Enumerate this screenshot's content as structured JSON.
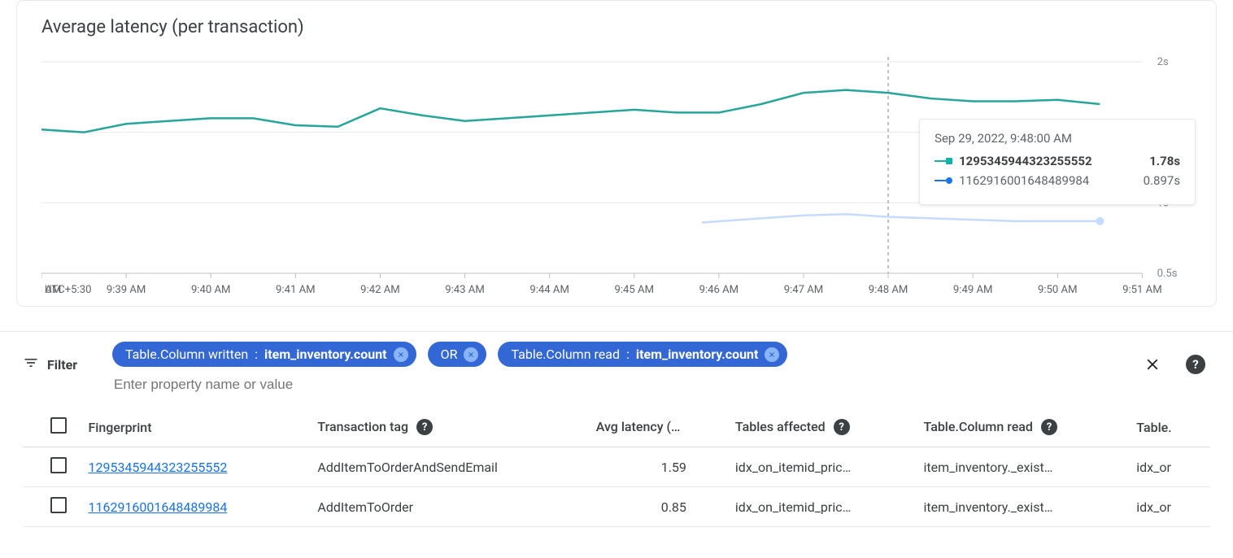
{
  "chart": {
    "title": "Average latency (per transaction)",
    "timezone_label": "UTC+5:30",
    "y_axis": {
      "min": 0.5,
      "max": 2.0,
      "ticks": [
        0.5,
        1.0,
        1.5,
        2.0
      ],
      "tick_labels": [
        "0.5s",
        "1s",
        "1.5s",
        "2s"
      ]
    },
    "x_axis": {
      "ticks": [
        38,
        39,
        40,
        41,
        42,
        43,
        44,
        45,
        46,
        47,
        48,
        49,
        50,
        51
      ],
      "tick_labels": [
        "9:38 AM",
        "9:39 AM",
        "9:40 AM",
        "9:41 AM",
        "9:42 AM",
        "9:43 AM",
        "9:44 AM",
        "9:45 AM",
        "9:46 AM",
        "9:47 AM",
        "9:48 AM",
        "9:49 AM",
        "9:50 AM",
        "9:51 AM"
      ]
    },
    "colors": {
      "grid": "#e8eaed",
      "axis": "#bdc1c6",
      "series1": "#26a69a",
      "series2": "#4285f4",
      "series1_tooltip": "#12b5a5",
      "series2_tooltip": "#1a73e8",
      "series2_light": "#c5dbff"
    },
    "series": [
      {
        "id": "s1",
        "name": "1295345944323255552",
        "color_key": "series1",
        "points": [
          [
            37.4,
            1.55
          ],
          [
            38.0,
            1.52
          ],
          [
            38.5,
            1.5
          ],
          [
            39.0,
            1.56
          ],
          [
            39.5,
            1.58
          ],
          [
            40.0,
            1.6
          ],
          [
            40.5,
            1.6
          ],
          [
            41.0,
            1.55
          ],
          [
            41.5,
            1.54
          ],
          [
            42.0,
            1.67
          ],
          [
            42.5,
            1.62
          ],
          [
            43.0,
            1.58
          ],
          [
            43.5,
            1.6
          ],
          [
            44.0,
            1.62
          ],
          [
            44.5,
            1.64
          ],
          [
            45.0,
            1.66
          ],
          [
            45.5,
            1.64
          ],
          [
            46.0,
            1.64
          ],
          [
            46.5,
            1.7
          ],
          [
            47.0,
            1.78
          ],
          [
            47.5,
            1.8
          ],
          [
            48.0,
            1.78
          ],
          [
            48.5,
            1.74
          ],
          [
            49.0,
            1.72
          ],
          [
            49.5,
            1.72
          ],
          [
            50.0,
            1.73
          ],
          [
            50.5,
            1.7
          ]
        ]
      },
      {
        "id": "s2",
        "name": "1162916001648489984",
        "color_key": "series2",
        "light": true,
        "points": [
          [
            45.8,
            0.86
          ],
          [
            46.5,
            0.89
          ],
          [
            47.0,
            0.91
          ],
          [
            47.5,
            0.92
          ],
          [
            48.0,
            0.9
          ],
          [
            48.5,
            0.89
          ],
          [
            49.0,
            0.88
          ],
          [
            49.5,
            0.87
          ],
          [
            50.0,
            0.87
          ],
          [
            50.5,
            0.87
          ]
        ],
        "end_marker": true
      }
    ],
    "guide_at_x": 48.0,
    "tooltip": {
      "time": "Sep 29, 2022, 9:48:00 AM",
      "rows": [
        {
          "series": "s1",
          "label": "1295345944323255552",
          "value": "1.78s",
          "bold": true,
          "marker": "square",
          "color_key": "series1_tooltip"
        },
        {
          "series": "s2",
          "label": "1162916001648489984",
          "value": "0.897s",
          "bold": false,
          "marker": "circle",
          "color_key": "series2_tooltip"
        }
      ]
    }
  },
  "filter": {
    "label": "Filter",
    "placeholder": "Enter property name or value",
    "chips": [
      {
        "type": "kv",
        "key": "Table.Column written",
        "sep": " : ",
        "val": "item_inventory.count"
      },
      {
        "type": "op",
        "label": "OR"
      },
      {
        "type": "kv",
        "key": "Table.Column read",
        "sep": " : ",
        "val": "item_inventory.count"
      }
    ]
  },
  "table": {
    "columns": [
      {
        "id": "fingerprint",
        "label": "Fingerprint",
        "help": false
      },
      {
        "id": "tag",
        "label": "Transaction tag",
        "help": true
      },
      {
        "id": "latency",
        "label": "Avg latency (s)",
        "help": true
      },
      {
        "id": "tables_affected",
        "label": "Tables affected",
        "help": true
      },
      {
        "id": "col_read",
        "label": "Table.Column read",
        "help": true
      },
      {
        "id": "col_write",
        "label": "Table.",
        "help": false
      }
    ],
    "rows": [
      {
        "fingerprint": "1295345944323255552",
        "tag": "AddItemToOrderAndSendEmail",
        "latency": "1.59",
        "tables_affected": "idx_on_itemid_pric…",
        "col_read": "item_inventory._exist…",
        "col_write": "idx_or"
      },
      {
        "fingerprint": "1162916001648489984",
        "tag": "AddItemToOrder",
        "latency": "0.85",
        "tables_affected": "idx_on_itemid_pric…",
        "col_read": "item_inventory._exist…",
        "col_write": "idx_or"
      }
    ]
  }
}
